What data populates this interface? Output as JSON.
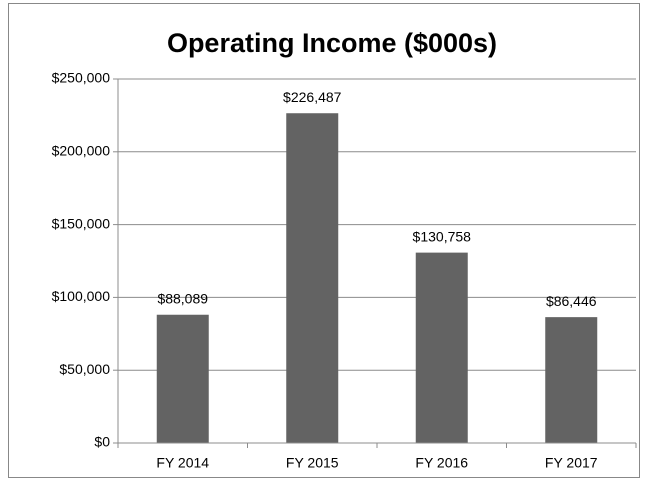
{
  "chart_data": {
    "type": "bar",
    "title": "Operating Income ($000s)",
    "categories": [
      "FY 2014",
      "FY 2015",
      "FY 2016",
      "FY 2017"
    ],
    "values": [
      88089,
      226487,
      130758,
      86446
    ],
    "value_labels": [
      "$88,089",
      "$226,487",
      "$130,758",
      "$86,446"
    ],
    "color": "#636363",
    "ylim": [
      0,
      250000
    ],
    "yticks": [
      {
        "value": 0,
        "label": "$0"
      },
      {
        "value": 50000,
        "label": "$50,000"
      },
      {
        "value": 100000,
        "label": "$100,000"
      },
      {
        "value": 150000,
        "label": "$150,000"
      },
      {
        "value": 200000,
        "label": "$200,000"
      },
      {
        "value": 250000,
        "label": "$250,000"
      }
    ],
    "grid": true
  }
}
